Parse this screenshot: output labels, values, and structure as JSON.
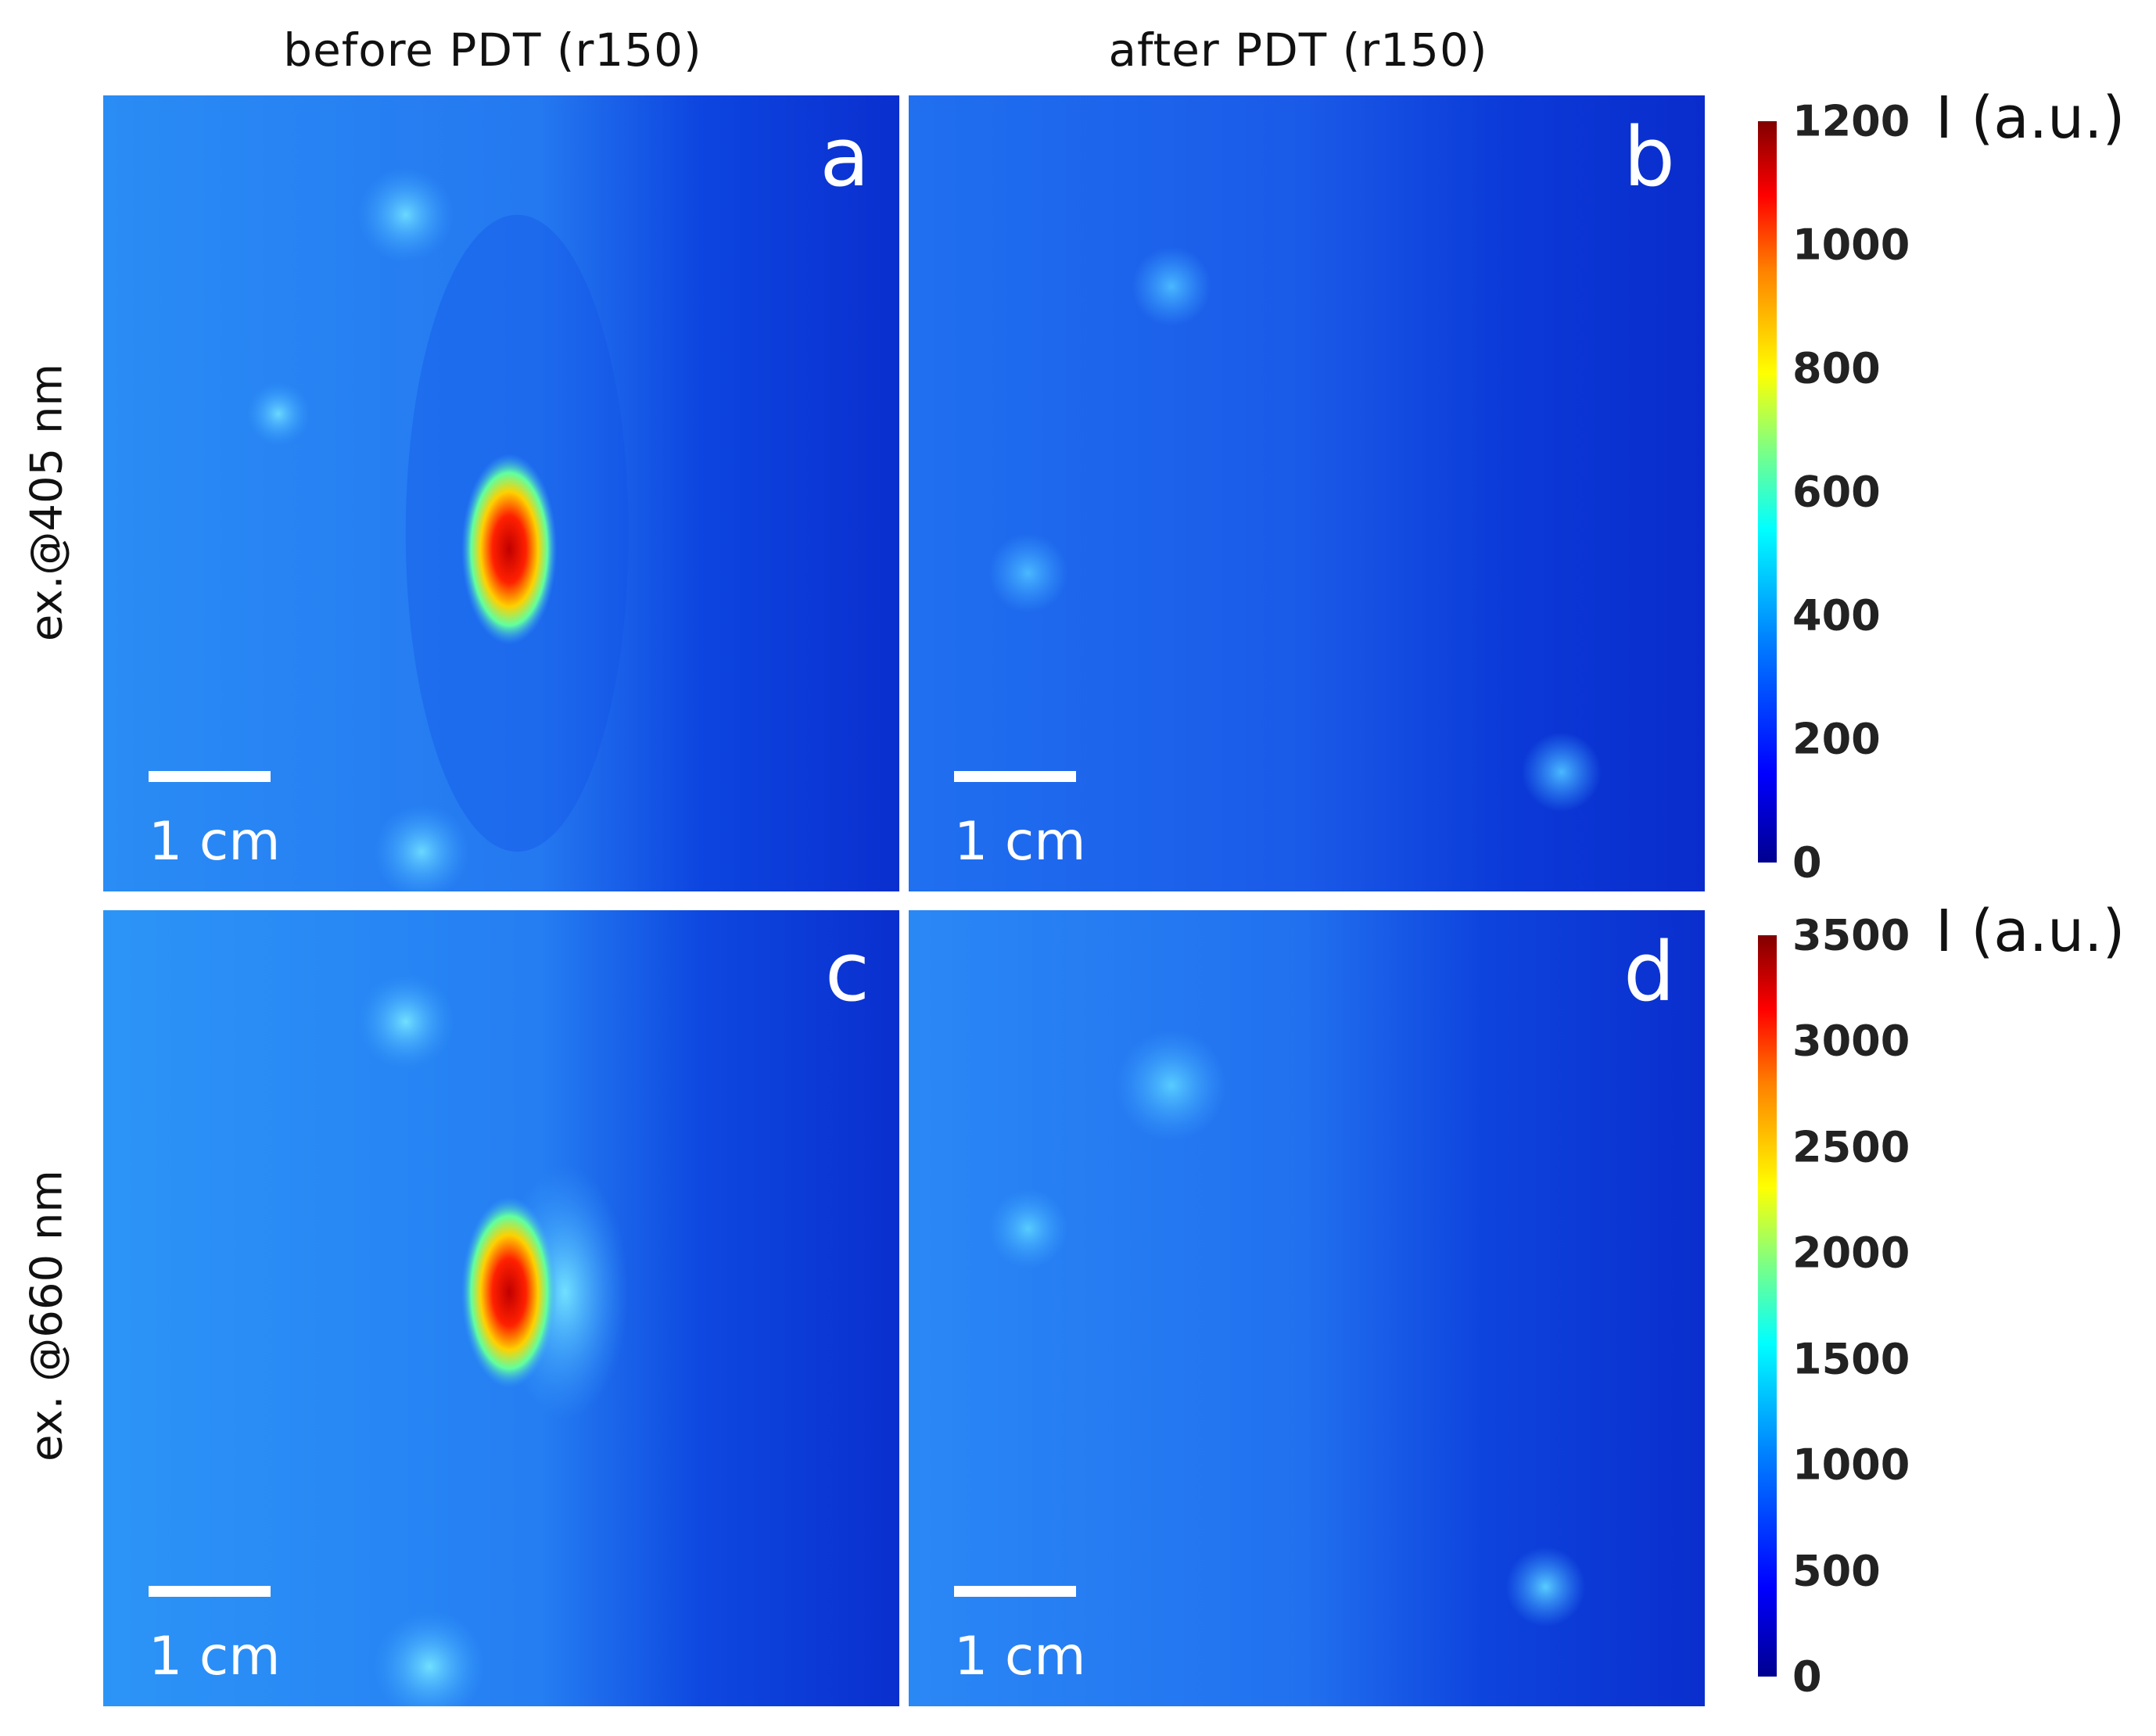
{
  "column_titles": [
    "before PDT (r150)",
    "after PDT (r150)"
  ],
  "row_labels": [
    "ex.@405 nm",
    "ex. @660 nm"
  ],
  "panels": [
    {
      "letter": "a",
      "scale_label": "1 cm"
    },
    {
      "letter": "b",
      "scale_label": "1 cm"
    },
    {
      "letter": "c",
      "scale_label": "1 cm"
    },
    {
      "letter": "d",
      "scale_label": "1 cm"
    }
  ],
  "colorbars": [
    {
      "unit": "I (a.u.)",
      "ticks": [
        "1200",
        "1000",
        "800",
        "600",
        "400",
        "200",
        "0"
      ]
    },
    {
      "unit": "I (a.u.)",
      "ticks": [
        "3500",
        "3000",
        "2500",
        "2000",
        "1500",
        "1000",
        "500",
        "0"
      ]
    }
  ],
  "colors": {
    "background_blue": "#1a5cf0",
    "colormap": "jet"
  }
}
